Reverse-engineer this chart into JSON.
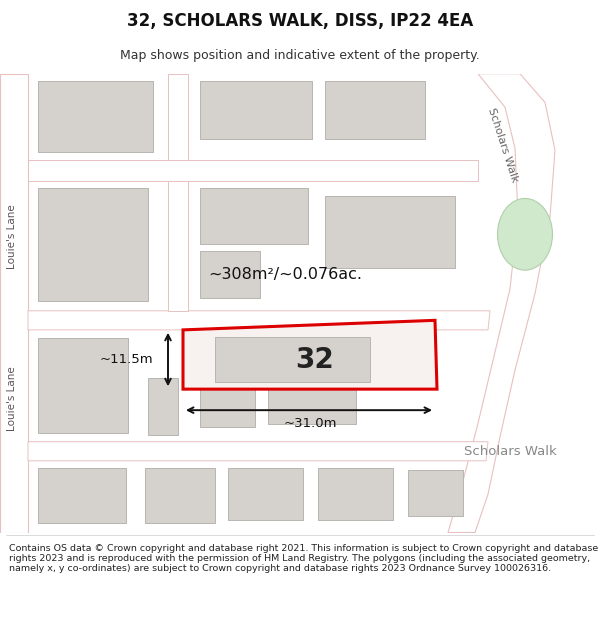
{
  "title": "32, SCHOLARS WALK, DISS, IP22 4EA",
  "subtitle": "Map shows position and indicative extent of the property.",
  "footer": "Contains OS data © Crown copyright and database right 2021. This information is subject to Crown copyright and database rights 2023 and is reproduced with the permission of HM Land Registry. The polygons (including the associated geometry, namely x, y co-ordinates) are subject to Crown copyright and database rights 2023 Ordnance Survey 100026316.",
  "map_bg": "#ede9e4",
  "road_fill": "#ffffff",
  "road_edge": "#e8c0c0",
  "building_fc": "#d5d2cd",
  "building_ec": "#b8b5b0",
  "highlight_color": "#dd0000",
  "green_fc": "#d0e8cc",
  "green_ec": "#b0d0aa",
  "label_32": "32",
  "area_label": "~308m²/~0.076ac.",
  "width_label": "~31.0m",
  "height_label": "~11.5m",
  "street_scholars_walk_diag": "Scholars Walk",
  "street_scholars_walk_horiz": "Scholars Walk",
  "street_louies_lane_top": "Louie's Lane",
  "street_louies_lane_bot": "Louie's Lane"
}
